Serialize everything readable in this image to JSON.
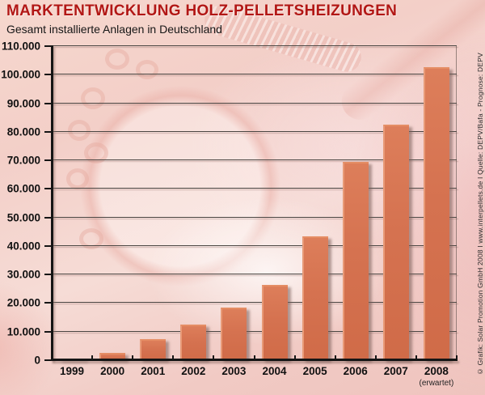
{
  "header": {
    "title": "MARKTENTWICKLUNG HOLZ-PELLETSHEIZUNGEN",
    "subtitle": "Gesamt installierte Anlagen in Deutschland"
  },
  "credit": "© Grafik: Solar Promotion GmbH 2008 I www.interpellets.de I Quelle: DEPV/Bafa - Prognose: DEPV",
  "chart_data": {
    "type": "bar",
    "title": "MARKTENTWICKLUNG HOLZ-PELLETSHEIZUNGEN",
    "subtitle": "Gesamt installierte Anlagen in Deutschland",
    "categories": [
      "1999",
      "2000",
      "2001",
      "2002",
      "2003",
      "2004",
      "2005",
      "2006",
      "2007",
      "2008"
    ],
    "values": [
      700,
      2500,
      7500,
      12500,
      18500,
      26500,
      43500,
      69500,
      82500,
      102500
    ],
    "category_note": {
      "category": "2008",
      "label": "(erwartet)"
    },
    "xlabel": "",
    "ylabel": "",
    "ylim": [
      0,
      110000
    ],
    "ytick_step": 10000,
    "ytick_labels": [
      "0",
      "10.000",
      "20.000",
      "30.000",
      "40.000",
      "50.000",
      "60.000",
      "70.000",
      "80.000",
      "90.000",
      "100.000",
      "110.000"
    ],
    "grid": true,
    "legend": false,
    "bar_color": "#d57250"
  },
  "colors": {
    "title": "#b21715",
    "text": "#111111",
    "axis": "#151515",
    "bar": "#d57250",
    "background": "#f3cfc8"
  }
}
